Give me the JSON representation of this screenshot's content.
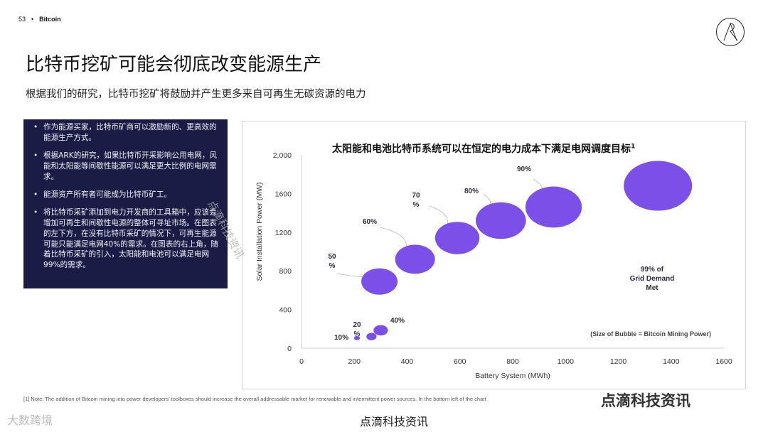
{
  "header": {
    "page_number": "53",
    "separator": "•",
    "section": "Bitcoin"
  },
  "logo": {
    "icon": "ark-logo-icon"
  },
  "title": "比特币挖矿可能会彻底改变能源生产",
  "subtitle": "根据我们的研究，比特币挖矿将鼓励并产生更多来自可再生无碳资源的电力",
  "bullets": [
    "作为能源买家，比特币矿商可以激励新的、更高效的能源生产方式。",
    "根据ARK的研究，如果比特币开采影响公用电网，风能和太阳能等间歇性能源可以满足更大比例的电网需求。",
    "能源资产所有者可能成为比特币矿工。",
    "将比特币采矿添加到电力开发商的工具箱中，应该会增加可再生和间歇性电源的整体可寻址市场。在图表的左下方，在没有比特币采矿的情况下，可再生能源可能只能满足电网40%的需求。在图表的右上角，随着比特币采矿的引入，太阳能和电池可以满足电网99%的需求。"
  ],
  "chart_data": {
    "type": "scatter",
    "title": "太阳能和电池比特币系统可以在恒定的电力成本下满足电网调度目标",
    "title_superscript": "1",
    "xlabel": "Battery System (MWh)",
    "ylabel": "Solar Installation Power (MW)",
    "xlim": [
      0,
      1600
    ],
    "ylim": [
      0,
      2000
    ],
    "x_ticks": [
      "0",
      "200",
      "400",
      "600",
      "800",
      "1000",
      "1200",
      "1400",
      "1600"
    ],
    "y_ticks": [
      "0",
      "400",
      "800",
      "1200",
      "1600",
      "2,000"
    ],
    "note": "(Size of Bubble = Bitcoin Mining Power)",
    "bubble_color": "#7b4fe8",
    "points": [
      {
        "label": "10%",
        "x": 210,
        "y": 105,
        "size": 0.1
      },
      {
        "label": "20\n%",
        "x": 265,
        "y": 120,
        "size": 0.3
      },
      {
        "label": "40%",
        "x": 300,
        "y": 185,
        "size": 0.6
      },
      {
        "label": "50\n%",
        "x": 295,
        "y": 690,
        "size": 3.8
      },
      {
        "label": "60%",
        "x": 430,
        "y": 920,
        "size": 4.6
      },
      {
        "label": "70\n%",
        "x": 590,
        "y": 1140,
        "size": 5.7
      },
      {
        "label": "80%",
        "x": 755,
        "y": 1320,
        "size": 7.3
      },
      {
        "label": "90%",
        "x": 955,
        "y": 1460,
        "size": 9.2
      },
      {
        "label": "99% of\nGrid Demand\nMet",
        "x": 1350,
        "y": 1680,
        "size": 13.5
      }
    ]
  },
  "footnote": "[1] Note: The addition of Bitcoin mining into power developers' toolboxes should increase the overall addressable market for renewable and intermittent power sources. In the bottom left of the chart",
  "watermarks": {
    "bottom": "点滴科技资讯",
    "left": "大数跨境",
    "right": "点滴科技资讯",
    "diagonal": "点滴科技资讯"
  }
}
